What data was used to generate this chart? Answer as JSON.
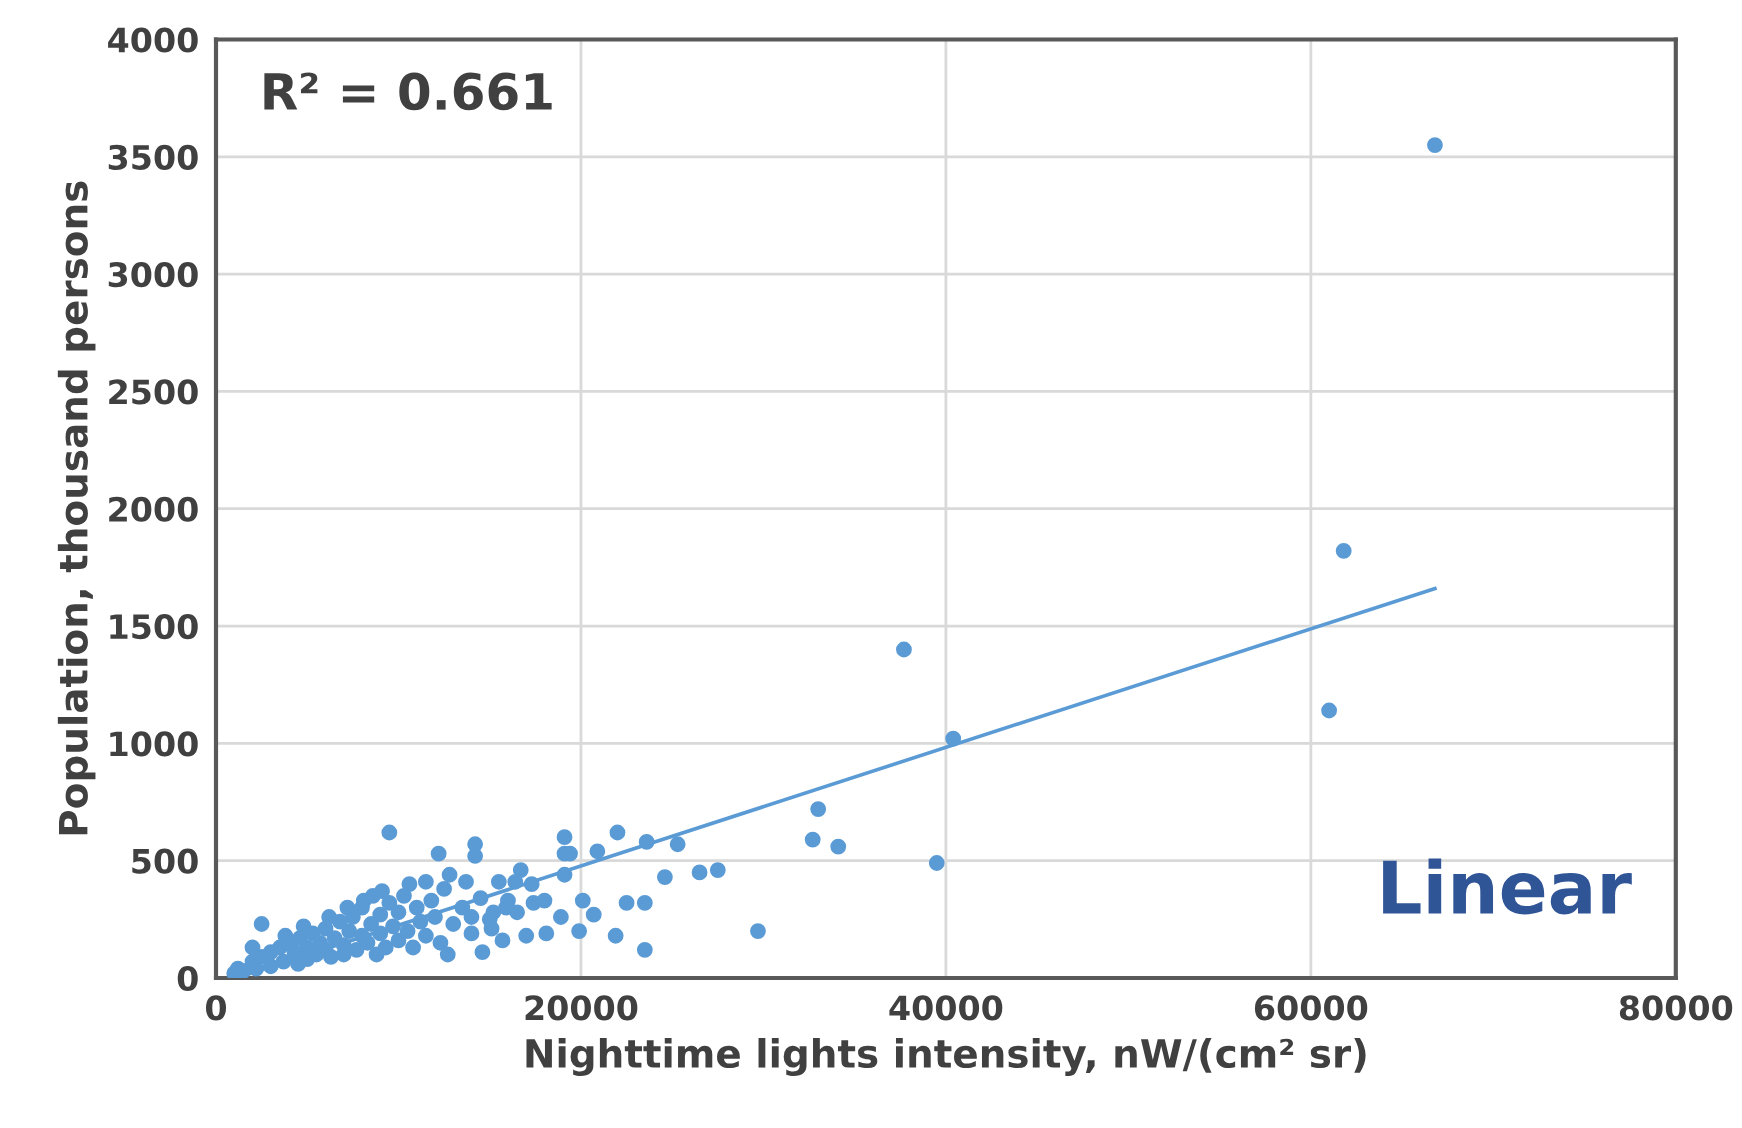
{
  "chart_data": {
    "type": "scatter",
    "xlabel": "Nighttime lights intensity, nW/(cm² sr)",
    "ylabel": "Population, thousand persons",
    "annotations": [
      "R² = 0.661",
      "Linear"
    ],
    "xlim": [
      0,
      80000
    ],
    "xticks": [
      0,
      20000,
      40000,
      60000,
      80000
    ],
    "ylim": [
      0,
      4000
    ],
    "yticks": [
      0,
      500,
      1000,
      1500,
      2000,
      2500,
      3000,
      3500,
      4000
    ],
    "grid": true,
    "marker": "circle",
    "series": [
      {
        "color": "#5b9bd5",
        "x": [
          66800,
          61800,
          61000,
          37700,
          40400,
          39500,
          33000,
          32700,
          34100,
          29700,
          22000,
          23600,
          25300,
          20900,
          24600,
          26500,
          27500,
          20100,
          22500,
          23500,
          20700,
          19900,
          21900,
          23500,
          19400,
          19100,
          9500,
          12200,
          14200,
          14200,
          19100,
          19100,
          2500,
          8100,
          9100,
          11500,
          12700,
          14600,
          13700,
          15500,
          16400,
          16700,
          17300,
          18000,
          18900,
          15700,
          17000,
          18100,
          15100,
          14000,
          15200,
          15900,
          17400,
          1000,
          1200,
          1500,
          2000,
          2200,
          2500,
          3000,
          3000,
          3500,
          3700,
          4000,
          4300,
          4500,
          4600,
          5000,
          5000,
          5300,
          5500,
          5700,
          6000,
          6000,
          6300,
          6500,
          6800,
          7000,
          7000,
          7300,
          7500,
          7700,
          8000,
          8000,
          8300,
          8500,
          8800,
          9000,
          9000,
          9300,
          9500,
          9700,
          10000,
          10000,
          10300,
          10500,
          10800,
          11000,
          11200,
          11500,
          11800,
          12000,
          12300,
          12500,
          13000,
          13500,
          14000,
          14500,
          15000,
          16000,
          16500,
          3800,
          6200,
          8600,
          10600,
          12800,
          2000,
          4800,
          7200
        ],
        "values": [
          3550,
          1820,
          1140,
          1400,
          1020,
          490,
          720,
          590,
          560,
          200,
          620,
          580,
          570,
          540,
          430,
          450,
          460,
          330,
          320,
          320,
          270,
          200,
          180,
          120,
          530,
          440,
          620,
          530,
          570,
          520,
          600,
          530,
          230,
          330,
          370,
          410,
          100,
          110,
          410,
          410,
          410,
          460,
          400,
          330,
          260,
          160,
          180,
          190,
          210,
          260,
          280,
          300,
          320,
          20,
          40,
          30,
          70,
          40,
          90,
          110,
          50,
          130,
          70,
          150,
          110,
          60,
          170,
          130,
          80,
          190,
          100,
          150,
          210,
          120,
          90,
          170,
          240,
          140,
          100,
          200,
          260,
          120,
          180,
          300,
          150,
          230,
          100,
          270,
          190,
          130,
          320,
          220,
          160,
          280,
          350,
          200,
          130,
          300,
          240,
          180,
          330,
          260,
          150,
          380,
          230,
          300,
          190,
          340,
          250,
          330,
          280,
          180,
          260,
          350,
          400,
          440,
          130,
          220,
          300
        ]
      },
      {
        "type": "line",
        "marker": "none",
        "color": "#5b9bd5",
        "x": [
          1500,
          66800
        ],
        "values": [
          10,
          1660
        ]
      }
    ]
  }
}
